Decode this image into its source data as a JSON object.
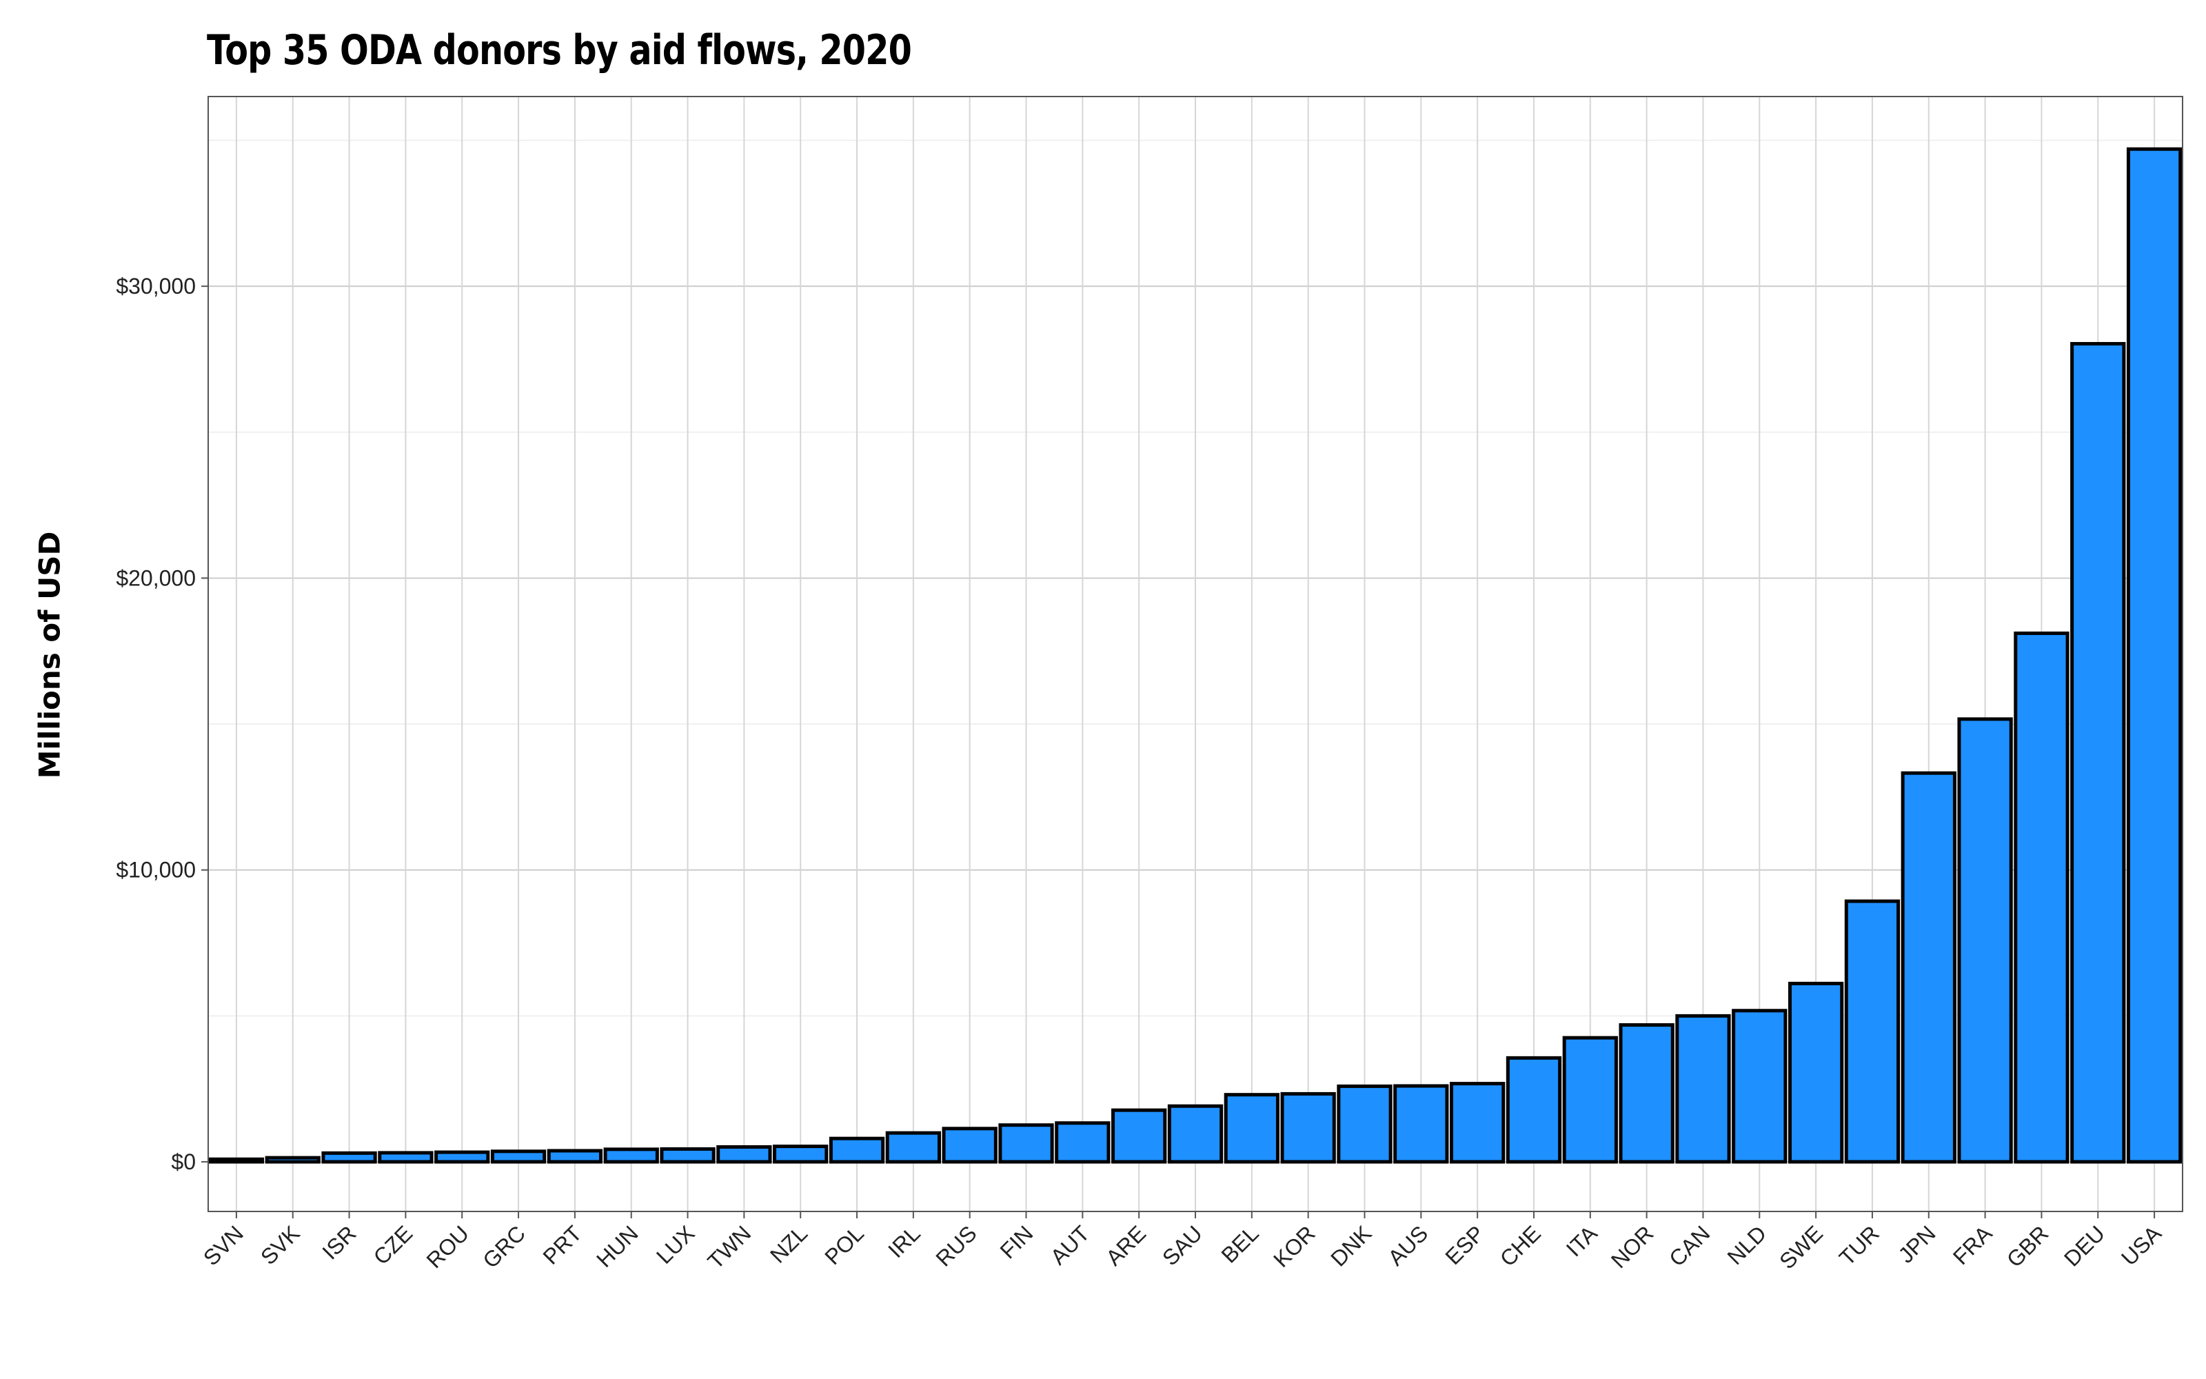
{
  "chart_data": {
    "type": "bar",
    "title": "Top 35 ODA donors by aid flows, 2020",
    "xlabel": "",
    "ylabel": "Millions of USD",
    "ylim": [
      -1700,
      36500
    ],
    "yticks": [
      0,
      10000,
      20000,
      30000
    ],
    "ytick_labels": [
      "$0",
      "$10,000",
      "$20,000",
      "$30,000"
    ],
    "grid": true,
    "legend": "none",
    "bar_color": "#1e90ff",
    "bar_edge_color": "#000000",
    "categories": [
      "SVN",
      "SVK",
      "ISR",
      "CZE",
      "ROU",
      "GRC",
      "PRT",
      "HUN",
      "LUX",
      "TWN",
      "NZL",
      "POL",
      "IRL",
      "RUS",
      "FIN",
      "AUT",
      "ARE",
      "SAU",
      "BEL",
      "KOR",
      "DNK",
      "AUS",
      "ESP",
      "CHE",
      "ITA",
      "NOR",
      "CAN",
      "NLD",
      "SWE",
      "TUR",
      "JPN",
      "FRA",
      "GBR",
      "DEU",
      "USA"
    ],
    "values": [
      90,
      140,
      300,
      310,
      330,
      360,
      380,
      430,
      440,
      510,
      530,
      800,
      990,
      1140,
      1260,
      1330,
      1770,
      1910,
      2300,
      2330,
      2590,
      2600,
      2680,
      3560,
      4250,
      4690,
      5000,
      5180,
      6110,
      8930,
      13320,
      15170,
      18110,
      28030,
      34700
    ]
  }
}
